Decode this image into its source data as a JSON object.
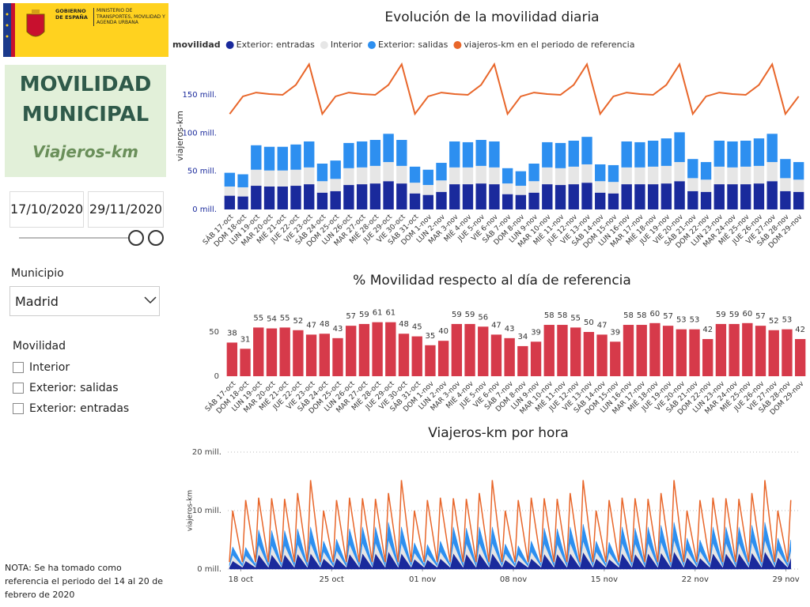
{
  "header": {
    "government": "GOBIERNO DE ESPAÑA",
    "ministry": "MINISTERIO DE TRANSPORTES, MOVILIDAD Y AGENDA URBANA"
  },
  "sidebar": {
    "title": "MOVILIDAD MUNICIPAL",
    "subtitle": "Viajeros-km",
    "date_start": "17/10/2020",
    "date_end": "29/11/2020",
    "municipio_label": "Municipio",
    "municipio_value": "Madrid",
    "movilidad_label": "Movilidad",
    "movilidad_options": [
      "Interior",
      "Exterior: salidas",
      "Exterior: entradas"
    ],
    "note": "NOTA: Se ha tomado como referencia el periodo del 14 al 20 de febrero de 2020"
  },
  "chart_data": [
    {
      "type": "bar",
      "stacked": true,
      "title": "Evolución de la movilidad diaria",
      "ylabel": "viajeros-km",
      "legend_title": "movilidad",
      "grid": false,
      "categories": [
        "SÁB 17-oct",
        "DOM 18-oct",
        "LUN 19-oct",
        "MAR 20-oct",
        "MIÉ 21-oct",
        "JUE 22-oct",
        "VIE 23-oct",
        "SÁB 24-oct",
        "DOM 25-oct",
        "LUN 26-oct",
        "MAR 27-oct",
        "MIÉ 28-oct",
        "JUE 29-oct",
        "VIE 30-oct",
        "SÁB 31-oct",
        "DOM 1-nov",
        "LUN 2-nov",
        "MAR 3-nov",
        "MIÉ 4-nov",
        "JUE 5-nov",
        "VIE 6-nov",
        "SÁB 7-nov",
        "DOM 8-nov",
        "LUN 9-nov",
        "MAR 10-nov",
        "MIÉ 11-nov",
        "JUE 12-nov",
        "VIE 13-nov",
        "SÁB 14-nov",
        "DOM 15-nov",
        "LUN 16-nov",
        "MAR 17-nov",
        "MIÉ 18-nov",
        "JUE 19-nov",
        "VIE 20-nov",
        "SÁB 21-nov",
        "DOM 22-nov",
        "LUN 23-nov",
        "MAR 24-nov",
        "MIÉ 25-nov",
        "JUE 26-nov",
        "VIE 27-nov",
        "SÁB 28-nov",
        "DOM 29-nov"
      ],
      "series": [
        {
          "name": "Exterior: entradas",
          "color": "#1a2a9c",
          "values": [
            18,
            17,
            31,
            30,
            30,
            31,
            33,
            22,
            24,
            32,
            33,
            34,
            37,
            34,
            21,
            19,
            23,
            33,
            33,
            34,
            33,
            20,
            19,
            22,
            33,
            32,
            33,
            35,
            22,
            21,
            33,
            33,
            33,
            34,
            37,
            24,
            23,
            33,
            33,
            33,
            34,
            37,
            24,
            23
          ]
        },
        {
          "name": "Interior",
          "color": "#e6e6e6",
          "values": [
            12,
            12,
            21,
            21,
            21,
            21,
            22,
            15,
            16,
            22,
            22,
            23,
            25,
            23,
            14,
            13,
            15,
            22,
            22,
            23,
            22,
            14,
            12,
            15,
            22,
            22,
            23,
            24,
            15,
            15,
            22,
            22,
            23,
            23,
            25,
            17,
            16,
            23,
            22,
            23,
            23,
            25,
            17,
            16
          ]
        },
        {
          "name": "Exterior: salidas",
          "color": "#2d8ff0",
          "values": [
            18,
            17,
            32,
            31,
            31,
            33,
            34,
            23,
            24,
            33,
            34,
            34,
            37,
            34,
            21,
            20,
            23,
            34,
            33,
            34,
            34,
            20,
            19,
            23,
            33,
            33,
            34,
            36,
            22,
            22,
            34,
            33,
            34,
            36,
            39,
            25,
            23,
            34,
            34,
            34,
            36,
            37,
            25,
            23
          ]
        },
        {
          "name": "viajeros-km en el periodo de referencia",
          "color": "#e8662a",
          "type": "line",
          "values": [
            125,
            148,
            153,
            151,
            150,
            163,
            190,
            125,
            148,
            153,
            151,
            150,
            163,
            190,
            125,
            148,
            153,
            151,
            150,
            163,
            190,
            125,
            148,
            153,
            151,
            150,
            163,
            190,
            125,
            148,
            153,
            151,
            150,
            163,
            190,
            125,
            148,
            153,
            151,
            150,
            163,
            190,
            125,
            148
          ]
        }
      ],
      "ylim": [
        0,
        195
      ],
      "yticks": [
        {
          "value": 0,
          "label": "0 mill."
        },
        {
          "value": 50,
          "label": "50 mill."
        },
        {
          "value": 100,
          "label": "100 mill."
        },
        {
          "value": 150,
          "label": "150 mill."
        }
      ]
    },
    {
      "type": "bar",
      "title": "% Movilidad respecto al día de referencia",
      "grid": false,
      "color": "#d63a4a",
      "value_labels_shown": true,
      "categories": [
        "SÁB 17-oct",
        "DOM 18-oct",
        "LUN 19-oct",
        "MAR 20-oct",
        "MIÉ 21-oct",
        "JUE 22-oct",
        "VIE 23-oct",
        "SÁB 24-oct",
        "DOM 25-oct",
        "LUN 26-oct",
        "MAR 27-oct",
        "MIÉ 28-oct",
        "JUE 29-oct",
        "VIE 30-oct",
        "SÁB 31-oct",
        "DOM 1-nov",
        "LUN 2-nov",
        "MAR 3-nov",
        "MIÉ 4-nov",
        "JUE 5-nov",
        "VIE 6-nov",
        "SÁB 7-nov",
        "DOM 8-nov",
        "LUN 9-nov",
        "MAR 10-nov",
        "MIÉ 11-nov",
        "JUE 12-nov",
        "VIE 13-nov",
        "SÁB 14-nov",
        "DOM 15-nov",
        "LUN 16-nov",
        "MAR 17-nov",
        "MIÉ 18-nov",
        "JUE 19-nov",
        "VIE 20-nov",
        "SÁB 21-nov",
        "DOM 22-nov",
        "LUN 23-nov",
        "MAR 24-nov",
        "MIÉ 25-nov",
        "JUE 26-nov",
        "VIE 27-nov",
        "SÁB 28-nov",
        "DOM 29-nov"
      ],
      "values": [
        38,
        31,
        55,
        54,
        55,
        52,
        47,
        48,
        43,
        57,
        59,
        61,
        61,
        48,
        45,
        35,
        40,
        59,
        59,
        56,
        47,
        43,
        34,
        39,
        58,
        58,
        55,
        50,
        47,
        39,
        58,
        58,
        60,
        57,
        53,
        53,
        42,
        59,
        59,
        60,
        57,
        52,
        53,
        42
      ],
      "ylim": [
        0,
        65
      ],
      "yticks": [
        0,
        50
      ]
    },
    {
      "type": "area",
      "stacked": true,
      "title": "Viajeros-km por hora",
      "ylabel": "viajeros-km",
      "grid": true,
      "x": [
        0.125,
        0.375,
        1.125,
        1.375,
        2.125,
        2.375,
        3.125,
        3.375,
        4.125,
        4.375,
        5.125,
        5.375,
        6.125,
        6.375,
        7.125,
        7.375,
        8.125,
        8.375,
        9.125,
        9.375,
        10.125,
        10.375,
        11.125,
        11.375,
        12.125,
        12.375,
        13.125,
        13.375,
        14.125,
        14.375,
        15.125,
        15.375,
        16.125,
        16.375,
        17.125,
        17.375,
        18.125,
        18.375,
        19.125,
        19.375,
        20.125,
        20.375,
        21.125,
        21.375,
        22.125,
        22.375,
        23.125,
        23.375,
        24.125,
        24.375,
        25.125,
        25.375,
        26.125,
        26.375,
        27.125,
        27.375,
        28.125,
        28.375,
        29.125,
        29.375,
        30.125,
        30.375,
        31.125,
        31.375,
        32.125,
        32.375,
        33.125,
        33.375,
        34.125,
        34.375,
        35.125,
        35.375,
        36.125,
        36.375,
        37.125,
        37.375,
        38.125,
        38.375,
        39.125,
        39.375,
        40.125,
        40.375,
        41.125,
        41.375,
        42.125,
        42.375,
        43.125,
        43.375
      ],
      "series": [
        {
          "color": "#1a2a9c",
          "values": [
            0.3,
            1.4,
            0.3,
            1.4,
            0.3,
            2.5,
            0.3,
            2.5,
            0.3,
            2.5,
            0.3,
            2.6,
            0.3,
            2.7,
            0.3,
            1.8,
            0.3,
            1.9,
            0.3,
            2.6,
            0.3,
            2.7,
            0.3,
            2.7,
            0.3,
            3.0,
            0.3,
            2.7,
            0.3,
            1.7,
            0.3,
            1.6,
            0.3,
            1.8,
            0.3,
            2.7,
            0.3,
            2.6,
            0.3,
            2.7,
            0.3,
            2.7,
            0.3,
            1.6,
            0.3,
            1.5,
            0.3,
            1.8,
            0.3,
            2.6,
            0.3,
            2.6,
            0.3,
            2.7,
            0.3,
            2.9,
            0.3,
            1.8,
            0.3,
            1.7,
            0.3,
            2.7,
            0.3,
            2.6,
            0.3,
            2.7,
            0.3,
            2.8,
            0.3,
            3.0,
            0.3,
            2.0,
            0.3,
            1.9,
            0.3,
            2.7,
            0.3,
            2.7,
            0.3,
            2.7,
            0.3,
            2.8,
            0.3,
            3.0,
            0.3,
            2.0,
            0.3,
            1.9
          ]
        },
        {
          "color": "#e6e6e6",
          "values": [
            0.2,
            1.0,
            0.2,
            0.9,
            0.2,
            1.7,
            0.2,
            1.6,
            0.2,
            1.6,
            0.2,
            1.7,
            0.2,
            1.8,
            0.2,
            1.2,
            0.2,
            1.3,
            0.2,
            1.7,
            0.2,
            1.8,
            0.2,
            1.8,
            0.2,
            2.0,
            0.2,
            1.8,
            0.2,
            1.1,
            0.2,
            1.0,
            0.2,
            1.2,
            0.2,
            1.8,
            0.2,
            1.8,
            0.2,
            1.8,
            0.2,
            1.8,
            0.2,
            1.1,
            0.2,
            1.0,
            0.2,
            1.2,
            0.2,
            1.8,
            0.2,
            1.7,
            0.2,
            1.8,
            0.2,
            1.9,
            0.2,
            1.2,
            0.2,
            1.2,
            0.2,
            1.8,
            0.2,
            1.8,
            0.2,
            1.8,
            0.2,
            1.9,
            0.2,
            2.0,
            0.2,
            1.3,
            0.2,
            1.2,
            0.2,
            1.8,
            0.2,
            1.8,
            0.2,
            1.8,
            0.2,
            1.9,
            0.2,
            2.0,
            0.2,
            1.3,
            0.2,
            1.2
          ]
        },
        {
          "color": "#2d8ff0",
          "values": [
            0.3,
            1.4,
            0.3,
            1.4,
            0.3,
            2.5,
            0.3,
            2.5,
            0.3,
            2.5,
            0.3,
            2.6,
            0.3,
            2.7,
            0.3,
            1.8,
            0.3,
            1.9,
            0.3,
            2.6,
            0.3,
            2.7,
            0.3,
            2.7,
            0.3,
            3.0,
            0.3,
            2.7,
            0.3,
            1.7,
            0.3,
            1.6,
            0.3,
            1.8,
            0.3,
            2.7,
            0.3,
            2.6,
            0.3,
            2.7,
            0.3,
            2.7,
            0.3,
            1.6,
            0.3,
            1.5,
            0.3,
            1.8,
            0.3,
            2.6,
            0.3,
            2.6,
            0.3,
            2.7,
            0.3,
            2.9,
            0.3,
            1.8,
            0.3,
            1.7,
            0.3,
            2.7,
            0.3,
            2.6,
            0.3,
            2.7,
            0.3,
            2.8,
            0.3,
            3.0,
            0.3,
            2.0,
            0.3,
            1.9,
            0.3,
            2.7,
            0.3,
            2.7,
            0.3,
            2.7,
            0.3,
            2.8,
            0.3,
            3.0,
            0.3,
            2.0,
            0.3,
            1.9
          ]
        },
        {
          "color": "#e8662a",
          "type": "line",
          "values": [
            1.2,
            10.0,
            1.2,
            11.8,
            1.2,
            12.2,
            1.2,
            12.1,
            1.2,
            12.0,
            1.2,
            13.0,
            1.2,
            15.2,
            1.2,
            10.0,
            1.2,
            11.8,
            1.2,
            12.2,
            1.2,
            12.1,
            1.2,
            12.0,
            1.2,
            13.0,
            1.2,
            15.2,
            1.2,
            10.0,
            1.2,
            11.8,
            1.2,
            12.2,
            1.2,
            12.1,
            1.2,
            12.0,
            1.2,
            13.0,
            1.2,
            15.2,
            1.2,
            10.0,
            1.2,
            11.8,
            1.2,
            12.2,
            1.2,
            12.1,
            1.2,
            12.0,
            1.2,
            13.0,
            1.2,
            15.2,
            1.2,
            10.0,
            1.2,
            11.8,
            1.2,
            12.2,
            1.2,
            12.1,
            1.2,
            12.0,
            1.2,
            13.0,
            1.2,
            15.2,
            1.2,
            10.0,
            1.2,
            11.8,
            1.2,
            12.2,
            1.2,
            12.1,
            1.2,
            12.0,
            1.2,
            13.0,
            1.2,
            15.2,
            1.2,
            10.0,
            1.2,
            11.8
          ]
        }
      ],
      "xlim": [
        0,
        44
      ],
      "xticks": [
        {
          "value": 1,
          "label": "18 oct"
        },
        {
          "value": 8,
          "label": "25 oct"
        },
        {
          "value": 15,
          "label": "01 nov"
        },
        {
          "value": 22,
          "label": "08 nov"
        },
        {
          "value": 29,
          "label": "15 nov"
        },
        {
          "value": 36,
          "label": "22 nov"
        },
        {
          "value": 43,
          "label": "29 nov"
        }
      ],
      "ylim": [
        0,
        20
      ],
      "yticks": [
        {
          "value": 0,
          "label": "0 mill."
        },
        {
          "value": 10,
          "label": "10 mill."
        },
        {
          "value": 20,
          "label": "20 mill."
        }
      ]
    }
  ]
}
